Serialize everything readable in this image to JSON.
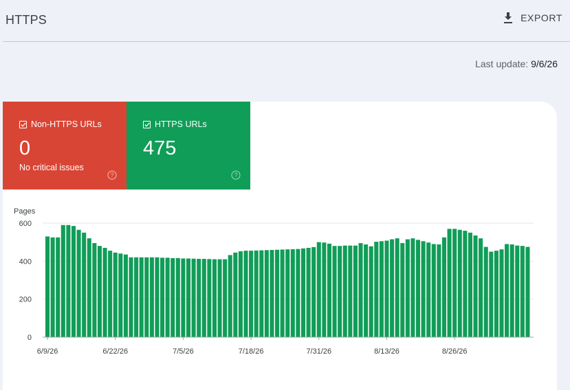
{
  "header": {
    "title": "HTTPS",
    "export_label": "EXPORT"
  },
  "last_update": {
    "label": "Last update:",
    "date": "9/6/26"
  },
  "tiles": [
    {
      "label": "Non-HTTPS URLs",
      "value": "0",
      "subtitle": "No critical issues",
      "color": "#d94535"
    },
    {
      "label": "HTTPS URLs",
      "value": "475",
      "subtitle": "",
      "color": "#109d58"
    }
  ],
  "chart_data": {
    "type": "bar",
    "ylabel": "Pages",
    "ylim": [
      0,
      600
    ],
    "yticks": [
      0,
      200,
      400,
      600
    ],
    "grid": true,
    "bar_color": "#109d58",
    "tick_labels": [
      {
        "index": 0,
        "label": "6/9/26"
      },
      {
        "index": 13,
        "label": "6/22/26"
      },
      {
        "index": 26,
        "label": "7/5/26"
      },
      {
        "index": 39,
        "label": "7/18/26"
      },
      {
        "index": 52,
        "label": "7/31/26"
      },
      {
        "index": 65,
        "label": "8/13/26"
      },
      {
        "index": 78,
        "label": "8/26/26"
      }
    ],
    "values": [
      530,
      525,
      525,
      590,
      590,
      585,
      565,
      550,
      520,
      495,
      480,
      470,
      455,
      445,
      440,
      435,
      420,
      420,
      420,
      420,
      420,
      420,
      418,
      418,
      416,
      416,
      414,
      414,
      413,
      412,
      412,
      411,
      410,
      410,
      410,
      432,
      445,
      452,
      455,
      455,
      456,
      457,
      458,
      459,
      460,
      461,
      462,
      463,
      464,
      467,
      470,
      474,
      500,
      498,
      492,
      480,
      480,
      482,
      482,
      482,
      495,
      488,
      478,
      502,
      505,
      508,
      515,
      520,
      495,
      515,
      520,
      512,
      505,
      498,
      490,
      488,
      525,
      570,
      570,
      565,
      560,
      550,
      535,
      520,
      475,
      450,
      455,
      462,
      490,
      488,
      482,
      480,
      475
    ]
  }
}
